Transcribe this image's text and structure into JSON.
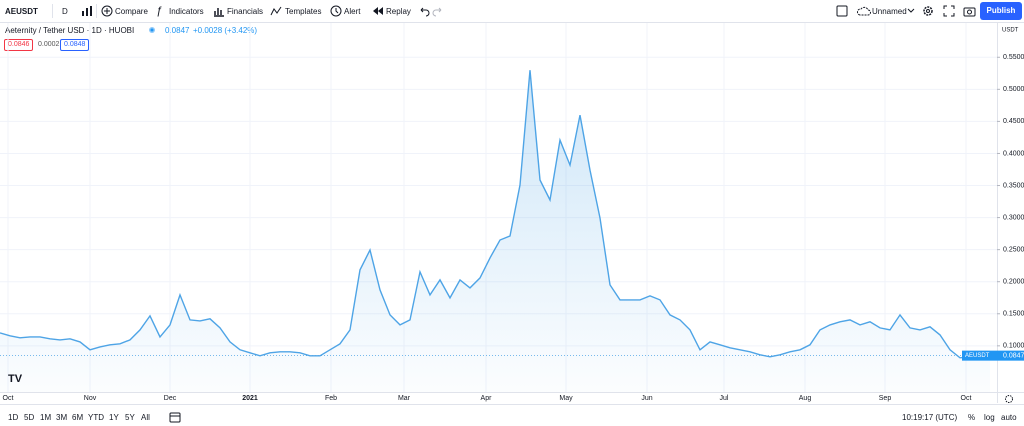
{
  "toolbar": {
    "symbol": "AEUSDT",
    "interval": "D",
    "compare": "Compare",
    "indicators": "Indicators",
    "financials": "Financials",
    "templates": "Templates",
    "alert": "Alert",
    "replay": "Replay",
    "layout": "Unnamed",
    "publish": "Publish"
  },
  "legend": {
    "title": "Aeternity / Tether USD · 1D · HUOBI",
    "change": "+0.0028 (+3.42%)",
    "bid": "0.0846",
    "spread": "0.0002",
    "ask": "0.0848"
  },
  "price_axis": {
    "unit": "USDT",
    "symbol_label": "AEUSDT"
  },
  "bottom_bar": {
    "ranges": [
      "1D",
      "5D",
      "1M",
      "3M",
      "6M",
      "YTD",
      "1Y",
      "5Y",
      "All"
    ],
    "clock": "10:19:17 (UTC)",
    "percent": "%",
    "log": "log",
    "auto": "auto"
  },
  "chart_data": {
    "type": "area",
    "color": "#4ea4e6",
    "grid": true,
    "values": [
      0.1202,
      0.1156,
      0.1125,
      0.114,
      0.114,
      0.1109,
      0.1093,
      0.1109,
      0.1062,
      0.0938,
      0.0984,
      0.1016,
      0.1031,
      0.1093,
      0.1249,
      0.1467,
      0.114,
      0.1327,
      0.1794,
      0.1405,
      0.1389,
      0.1421,
      0.128,
      0.1062,
      0.0938,
      0.0891,
      0.0844,
      0.0891,
      0.0907,
      0.0907,
      0.0891,
      0.0844,
      0.0844,
      0.0938,
      0.1031,
      0.1249,
      0.2184,
      0.2495,
      0.1872,
      0.1483,
      0.1327,
      0.1405,
      0.2153,
      0.1794,
      0.2028,
      0.1748,
      0.2028,
      0.1903,
      0.2059,
      0.2371,
      0.2651,
      0.2713,
      0.3508,
      0.5299,
      0.3586,
      0.3274,
      0.4209,
      0.3819,
      0.4598,
      0.3741,
      0.2994,
      0.195,
      0.1717,
      0.1717,
      0.1717,
      0.1779,
      0.1717,
      0.1483,
      0.1405,
      0.1249,
      0.0938,
      0.1062,
      0.1016,
      0.0969,
      0.0938,
      0.0907,
      0.086,
      0.0829,
      0.086,
      0.0907,
      0.0938,
      0.1016,
      0.1249,
      0.1327,
      0.1374,
      0.1405,
      0.1327,
      0.1374,
      0.128,
      0.1249,
      0.1483,
      0.128,
      0.1249,
      0.1296,
      0.1171,
      0.0938,
      0.0813,
      0.0829,
      0.0844,
      0.0847
    ],
    "xlim": [
      0,
      99.7
    ],
    "xticks": [
      {
        "value": 0.8,
        "label": "Oct"
      },
      {
        "value": 9,
        "label": "Nov"
      },
      {
        "value": 17,
        "label": "Dec"
      },
      {
        "value": 25,
        "label": "2021"
      },
      {
        "value": 33.1,
        "label": "Feb"
      },
      {
        "value": 40.4,
        "label": "Mar"
      },
      {
        "value": 48.6,
        "label": "Apr"
      },
      {
        "value": 56.6,
        "label": "May"
      },
      {
        "value": 64.7,
        "label": "Jun"
      },
      {
        "value": 72.4,
        "label": "Jul"
      },
      {
        "value": 80.5,
        "label": "Aug"
      },
      {
        "value": 88.5,
        "label": "Sep"
      },
      {
        "value": 96.6,
        "label": "Oct"
      }
    ],
    "ylim": [
      0.028,
      0.605
    ],
    "yticks": [
      {
        "value": 0.1,
        "label": "0.1000"
      },
      {
        "value": 0.15,
        "label": "0.1500"
      },
      {
        "value": 0.2,
        "label": "0.2000"
      },
      {
        "value": 0.25,
        "label": "0.2500"
      },
      {
        "value": 0.3,
        "label": "0.3000"
      },
      {
        "value": 0.35,
        "label": "0.3500"
      },
      {
        "value": 0.4,
        "label": "0.4000"
      },
      {
        "value": 0.45,
        "label": "0.4500"
      },
      {
        "value": 0.5,
        "label": "0.5000"
      },
      {
        "value": 0.55,
        "label": "0.5500"
      }
    ]
  }
}
